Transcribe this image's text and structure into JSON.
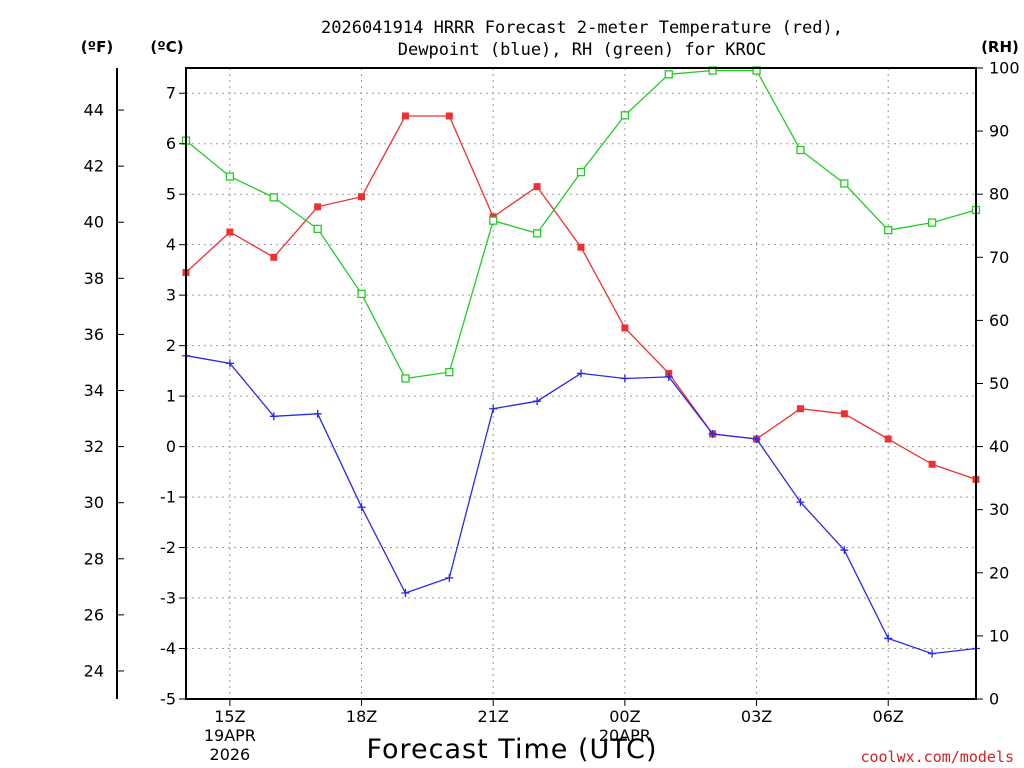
{
  "chart_data": {
    "type": "line",
    "title_line1": "2026041914 HRRR Forecast 2-meter Temperature (red),",
    "title_line2": "Dewpoint (blue), RH (green) for KROC",
    "unit_f": "(ºF)",
    "unit_c": "(ºC)",
    "unit_rh": "(RH)",
    "xlabel": "Forecast Time (UTC)",
    "credit": "coolwx.com/models",
    "x_start_hour": 14,
    "x_end_hour": 32,
    "x_ticks": [
      {
        "hour": 15,
        "label": "15Z",
        "sub1": "19APR",
        "sub2": "2026"
      },
      {
        "hour": 18,
        "label": "18Z",
        "sub1": "",
        "sub2": ""
      },
      {
        "hour": 21,
        "label": "21Z",
        "sub1": "",
        "sub2": ""
      },
      {
        "hour": 24,
        "label": "00Z",
        "sub1": "20APR",
        "sub2": ""
      },
      {
        "hour": 27,
        "label": "03Z",
        "sub1": "",
        "sub2": ""
      },
      {
        "hour": 30,
        "label": "06Z",
        "sub1": "",
        "sub2": ""
      }
    ],
    "ylim_c": [
      -5,
      7.5
    ],
    "y_ticks_c": [
      "-5",
      "-4",
      "-3",
      "-2",
      "-1",
      "0",
      "1",
      "2",
      "3",
      "4",
      "5",
      "6",
      "7"
    ],
    "y_ticks_f": [
      "24",
      "26",
      "28",
      "30",
      "32",
      "34",
      "36",
      "38",
      "40",
      "42",
      "44"
    ],
    "ylim_rh": [
      0,
      100
    ],
    "y_ticks_rh": [
      "0",
      "10",
      "20",
      "30",
      "40",
      "50",
      "60",
      "70",
      "80",
      "90",
      "100"
    ],
    "series": [
      {
        "name": "Temperature",
        "axis": "c",
        "color": "#ee3030",
        "marker": "filled-square",
        "x": [
          14,
          15,
          16,
          17,
          18,
          19,
          20,
          21,
          22,
          23,
          24,
          25,
          26,
          27,
          28,
          29,
          30,
          31,
          32
        ],
        "values": [
          3.45,
          4.25,
          3.75,
          4.75,
          4.95,
          6.55,
          6.55,
          4.55,
          5.15,
          3.95,
          2.35,
          1.45,
          0.25,
          0.15,
          0.75,
          0.65,
          0.15,
          -0.35,
          -0.65
        ]
      },
      {
        "name": "Dewpoint",
        "axis": "c",
        "color": "#2828ee",
        "marker": "plus",
        "x": [
          14,
          15,
          16,
          17,
          18,
          19,
          20,
          21,
          22,
          23,
          24,
          25,
          26,
          27,
          28,
          29,
          30,
          31,
          32
        ],
        "values": [
          1.8,
          1.65,
          0.6,
          0.65,
          -1.2,
          -2.9,
          -2.6,
          0.75,
          0.9,
          1.45,
          1.35,
          1.38,
          0.25,
          0.15,
          -1.1,
          -2.05,
          -3.8,
          -4.1,
          -4.0
        ]
      },
      {
        "name": "RH",
        "axis": "rh",
        "color": "#22cc22",
        "marker": "open-square",
        "x": [
          14,
          15,
          16,
          17,
          18,
          19,
          20,
          21,
          22,
          23,
          24,
          25,
          26,
          27,
          28,
          29,
          30,
          31,
          32
        ],
        "values": [
          88.5,
          82.8,
          79.5,
          74.5,
          64.2,
          50.8,
          51.8,
          75.8,
          73.8,
          83.5,
          92.5,
          99.0,
          99.6,
          99.6,
          87.0,
          81.7,
          74.3,
          75.5,
          77.5
        ]
      }
    ]
  }
}
